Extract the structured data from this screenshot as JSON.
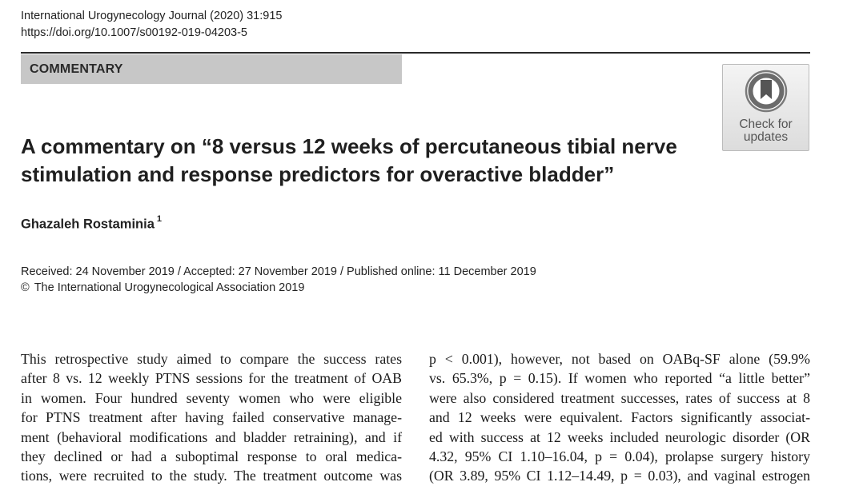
{
  "header": {
    "journal_line": "International Urogynecology Journal (2020) 31:915",
    "doi": "https://doi.org/10.1007/s00192-019-04203-5"
  },
  "article_type": "COMMENTARY",
  "check_for_updates": {
    "line1": "Check for",
    "line2": "updates"
  },
  "title": {
    "line1": "A commentary on “8 versus 12 weeks of percutaneous tibial nerve",
    "line2": "stimulation and response predictors for overactive bladder”"
  },
  "author": {
    "name": "Ghazaleh Rostaminia",
    "affiliation_mark": "1"
  },
  "dates": "Received: 24 November 2019 / Accepted: 27 November 2019 / Published online: 11 December 2019",
  "copyright": {
    "symbol": "©",
    "text": "The International Urogynecological Association 2019"
  },
  "body": {
    "left_lines": [
      "This retrospective study aimed to compare the success rates",
      "after 8 vs. 12 weekly PTNS sessions for the treatment of OAB",
      "in women. Four hundred seventy women who were eligible",
      "for PTNS treatment after having failed conservative manage-",
      "ment (behavioral modifications and bladder retraining), and if",
      "they declined or had a suboptimal response to oral medica-",
      "tions, were recruited to the study. The treatment outcome was"
    ],
    "right_lines": [
      "p < 0.001), however, not based on OABq-SF alone (59.9%",
      "vs. 65.3%, p = 0.15). If women who reported “a little better”",
      "were also considered treatment successes, rates of success at 8",
      "and 12 weeks were equivalent. Factors significantly associat-",
      "ed with success at 12 weeks included neurologic disorder (OR",
      "4.32, 95% CI 1.10–16.04, p = 0.04), prolapse surgery history",
      "(OR 3.89, 95% CI 1.12–14.49, p = 0.03), and vaginal estrogen"
    ]
  }
}
